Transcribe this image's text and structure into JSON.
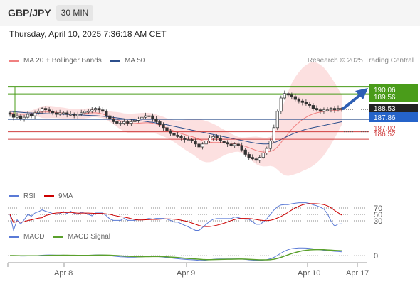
{
  "header": {
    "symbol": "GBP/JPY",
    "timeframe": "30 MIN"
  },
  "datetime": "Thursday, April 10, 2025 7:36:18 AM CET",
  "legend": {
    "ma20": "MA 20 + Bollinger Bands",
    "ma50": "MA 50",
    "ma20_color": "#f08080",
    "ma50_color": "#2c4f8c"
  },
  "attribution": "Research © 2025 Trading Central",
  "price_labels": {
    "target": "190.06",
    "resistance": "189.56",
    "current": "188.53",
    "pivot": "187.86",
    "support1": "187.02",
    "support2": "186.52"
  },
  "rsi": {
    "legend_rsi": "RSI",
    "legend_9ma": "9MA",
    "levels": [
      "70",
      "50",
      "30"
    ],
    "rsi_color": "#5a7ad6",
    "ma_color": "#cc0000"
  },
  "macd": {
    "legend_macd": "MACD",
    "legend_signal": "MACD Signal",
    "zero": "0",
    "macd_color": "#5a7ad6",
    "signal_color": "#5aa02c"
  },
  "x_axis": [
    "Apr 8",
    "Apr 9",
    "Apr 10",
    "Apr 17"
  ],
  "chart_data": {
    "type": "candlestick",
    "x_labels": [
      "Apr 8",
      "Apr 9",
      "Apr 10",
      "Apr 17"
    ],
    "levels": [
      {
        "name": "target",
        "value": 190.06,
        "color": "#4a9c1a"
      },
      {
        "name": "resistance",
        "value": 189.56,
        "color": "#4a9c1a"
      },
      {
        "name": "pivot",
        "value": 187.86,
        "color": "#2c4f8c"
      },
      {
        "name": "support",
        "value": 187.02,
        "color": "#d04040"
      },
      {
        "name": "support",
        "value": 186.52,
        "color": "#d04040"
      }
    ],
    "close": [
      188.2,
      188.0,
      188.1,
      187.9,
      188.0,
      188.2,
      188.1,
      188.3,
      188.4,
      188.6,
      188.5,
      188.4,
      188.3,
      188.2,
      188.3,
      188.3,
      188.2,
      188.2,
      188.1,
      188.2,
      188.3,
      188.4,
      188.4,
      188.5,
      188.6,
      188.5,
      188.4,
      188.1,
      187.9,
      187.7,
      187.6,
      187.6,
      187.7,
      187.6,
      187.7,
      187.8,
      187.9,
      188.0,
      188.1,
      188.1,
      187.9,
      187.7,
      187.5,
      187.3,
      187.1,
      186.9,
      186.8,
      186.7,
      186.6,
      186.5,
      186.5,
      186.4,
      186.2,
      186.0,
      186.2,
      186.4,
      186.6,
      186.7,
      186.6,
      186.4,
      186.3,
      186.2,
      186.1,
      186.2,
      186.1,
      185.8,
      185.5,
      185.3,
      185.2,
      185.1,
      185.3,
      185.6,
      185.9,
      186.4,
      187.3,
      188.4,
      189.3,
      189.6,
      189.5,
      189.4,
      189.2,
      189.1,
      189.0,
      188.9,
      188.8,
      188.6,
      188.5,
      188.4,
      188.5,
      188.5,
      188.6,
      188.5,
      188.6,
      188.53
    ],
    "ma20": [
      188.3,
      188.25,
      188.22,
      188.2,
      188.2,
      188.22,
      188.25,
      188.3,
      188.33,
      188.35,
      188.36,
      188.36,
      188.35,
      188.33,
      188.3,
      188.28,
      188.25,
      188.22,
      188.2,
      188.2,
      188.22,
      188.25,
      188.28,
      188.3,
      188.3,
      188.27,
      188.22,
      188.14,
      188.05,
      187.95,
      187.85,
      187.75,
      187.66,
      187.6,
      187.58,
      187.58,
      187.6,
      187.62,
      187.63,
      187.63,
      187.6,
      187.54,
      187.46,
      187.37,
      187.27,
      187.17,
      187.07,
      186.98,
      186.9,
      186.83,
      186.76,
      186.7,
      186.62,
      186.52,
      186.43,
      186.36,
      186.32,
      186.3,
      186.3,
      186.3,
      186.3,
      186.28,
      186.25,
      186.22,
      186.18,
      186.12,
      186.04,
      185.95,
      185.86,
      185.77,
      185.7,
      185.66,
      185.66,
      185.7,
      185.8,
      186.0,
      186.3,
      186.6,
      186.9,
      187.2,
      187.45,
      187.65,
      187.85,
      188.0,
      188.13,
      188.23,
      188.3,
      188.35,
      188.39,
      188.42,
      188.44,
      188.46,
      188.48,
      188.5
    ],
    "ma50": [
      188.4,
      188.38,
      188.36,
      188.34,
      188.32,
      188.3,
      188.29,
      188.28,
      188.27,
      188.26,
      188.25,
      188.24,
      188.23,
      188.22,
      188.21,
      188.2,
      188.19,
      188.18,
      188.17,
      188.16,
      188.15,
      188.14,
      188.13,
      188.12,
      188.11,
      188.09,
      188.07,
      188.05,
      188.02,
      187.99,
      187.96,
      187.93,
      187.9,
      187.87,
      187.84,
      187.81,
      187.78,
      187.75,
      187.72,
      187.69,
      187.66,
      187.62,
      187.58,
      187.54,
      187.49,
      187.44,
      187.39,
      187.34,
      187.29,
      187.24,
      187.19,
      187.14,
      187.09,
      187.04,
      186.99,
      186.94,
      186.89,
      186.84,
      186.79,
      186.74,
      186.69,
      186.64,
      186.59,
      186.54,
      186.49,
      186.44,
      186.39,
      186.34,
      186.29,
      186.25,
      186.22,
      186.2,
      186.2,
      186.22,
      186.28,
      186.38,
      186.5,
      186.62,
      186.74,
      186.85,
      186.95,
      187.04,
      187.12,
      187.19,
      187.25,
      187.3,
      187.35,
      187.4,
      187.45,
      187.5,
      187.55,
      187.6,
      187.65,
      187.7
    ]
  }
}
